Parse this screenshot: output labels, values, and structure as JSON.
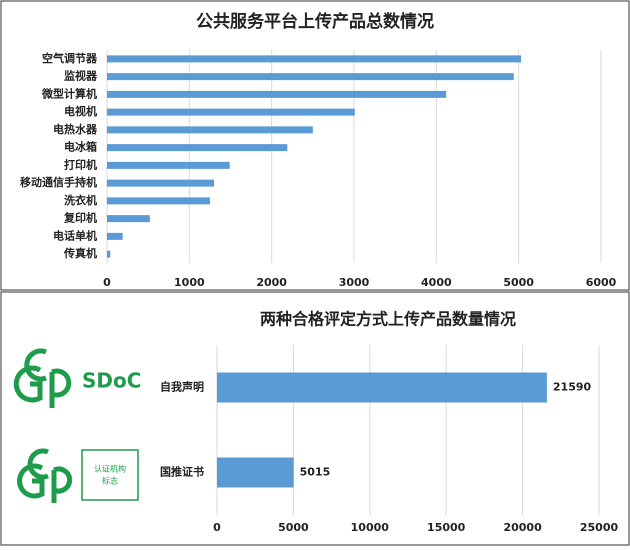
{
  "chart_data": [
    {
      "type": "bar",
      "orientation": "horizontal",
      "title": "公共服务平台上传产品总数情况",
      "categories": [
        "空气调节器",
        "监视器",
        "微型计算机",
        "电视机",
        "电热水器",
        "电冰箱",
        "打印机",
        "移动通信手持机",
        "洗衣机",
        "复印机",
        "电话单机",
        "传真机"
      ],
      "values": [
        5030,
        4940,
        4120,
        3010,
        2500,
        2190,
        1490,
        1300,
        1250,
        520,
        190,
        40
      ],
      "color": "#5b9bd5",
      "xlim": [
        0,
        6000
      ],
      "xticks": [
        0,
        1000,
        2000,
        3000,
        4000,
        5000,
        6000
      ],
      "grid": true
    },
    {
      "type": "bar",
      "orientation": "horizontal",
      "title": "两种合格评定方式上传产品数量情况",
      "categories": [
        "自我声明",
        "国推证书"
      ],
      "values": [
        21590,
        5015
      ],
      "color": "#5b9bd5",
      "xlim": [
        0,
        25000
      ],
      "xticks": [
        0,
        5000,
        10000,
        15000,
        20000,
        25000
      ],
      "grid": true
    }
  ],
  "badges": {
    "sdoc": "SDoC",
    "ca_line1": "认证机构",
    "ca_line2": "标志"
  }
}
